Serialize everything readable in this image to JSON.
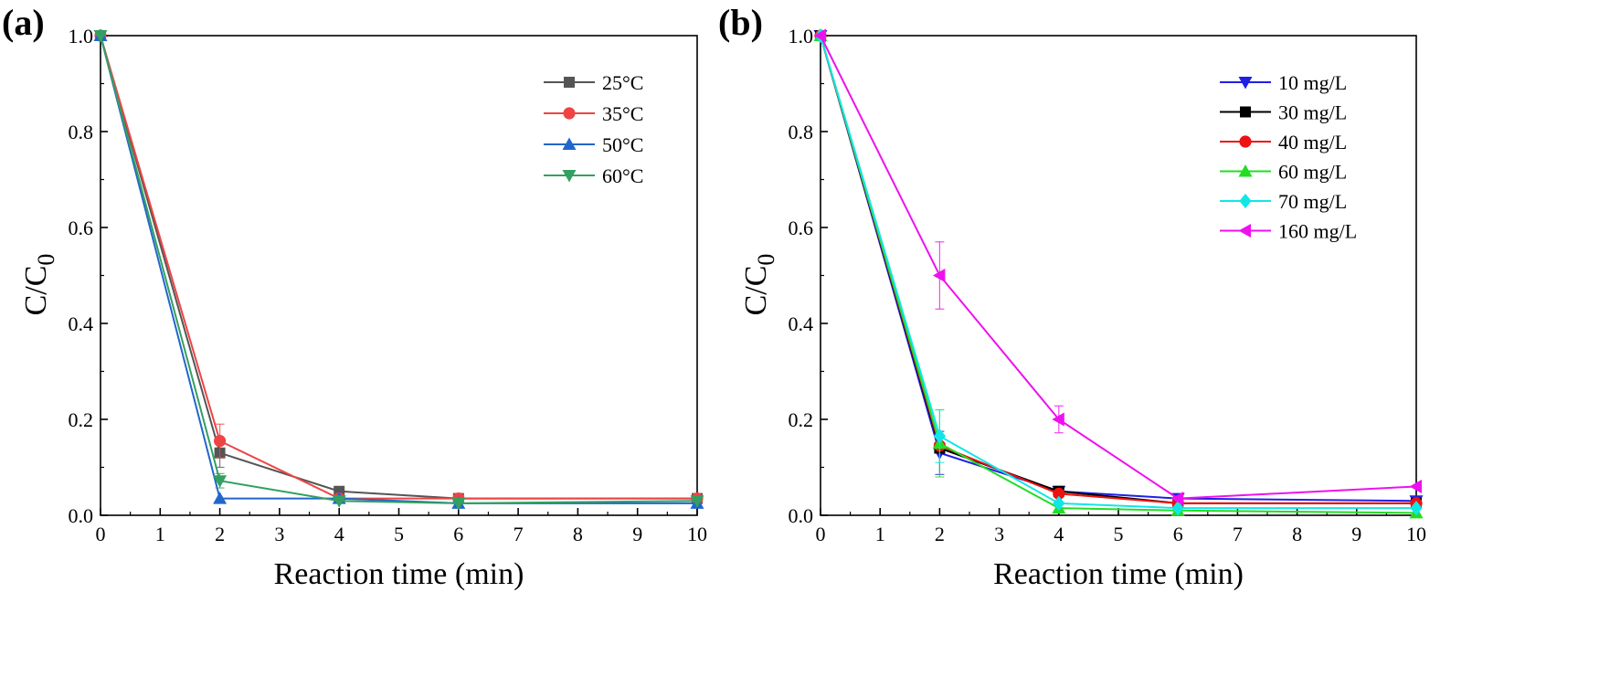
{
  "chart_data": [
    {
      "type": "line",
      "panel_label": "(a)",
      "xlabel": "Reaction time (min)",
      "ylabel_main": "C/C",
      "ylabel_sub": "0",
      "xlim": [
        0,
        10
      ],
      "ylim": [
        0,
        1.0
      ],
      "x_ticks": [
        0,
        1,
        2,
        3,
        4,
        5,
        6,
        7,
        8,
        9,
        10
      ],
      "x_tick_labels": [
        "0",
        "1",
        "2",
        "3",
        "4",
        "5",
        "6",
        "7",
        "8",
        "9",
        "10"
      ],
      "y_ticks": [
        0,
        0.2,
        0.4,
        0.6,
        0.8,
        1.0
      ],
      "y_tick_labels": [
        "0.0",
        "0.2",
        "0.4",
        "0.6",
        "0.8",
        "1.0"
      ],
      "legend_position": "top-right",
      "x": [
        0,
        2,
        4,
        6,
        10
      ],
      "series": [
        {
          "name": "25°C",
          "color": "#555555",
          "marker": "square",
          "values": [
            1.0,
            0.13,
            0.05,
            0.035,
            0.035
          ],
          "errors": [
            0,
            0.03,
            0,
            0,
            0
          ]
        },
        {
          "name": "35°C",
          "color": "#ee4444",
          "marker": "circle",
          "values": [
            1.0,
            0.155,
            0.035,
            0.035,
            0.035
          ],
          "errors": [
            0,
            0.035,
            0,
            0,
            0
          ]
        },
        {
          "name": "50°C",
          "color": "#2266cc",
          "marker": "triangle-up",
          "values": [
            1.0,
            0.035,
            0.035,
            0.025,
            0.025
          ],
          "errors": [
            0,
            0,
            0,
            0,
            0
          ]
        },
        {
          "name": "60°C",
          "color": "#33a060",
          "marker": "triangle-down",
          "values": [
            1.0,
            0.072,
            0.03,
            0.025,
            0.03
          ],
          "errors": [
            0,
            0.015,
            0,
            0,
            0
          ]
        }
      ]
    },
    {
      "type": "line",
      "panel_label": "(b)",
      "xlabel": "Reaction time (min)",
      "ylabel_main": "C/C",
      "ylabel_sub": "0",
      "xlim": [
        0,
        10
      ],
      "ylim": [
        0,
        1.0
      ],
      "x_ticks": [
        0,
        1,
        2,
        3,
        4,
        5,
        6,
        7,
        8,
        9,
        10
      ],
      "x_tick_labels": [
        "0",
        "1",
        "2",
        "3",
        "4",
        "5",
        "6",
        "7",
        "8",
        "9",
        "10"
      ],
      "y_ticks": [
        0,
        0.2,
        0.4,
        0.6,
        0.8,
        1.0
      ],
      "y_tick_labels": [
        "0.0",
        "0.2",
        "0.4",
        "0.6",
        "0.8",
        "1.0"
      ],
      "legend_position": "top-right",
      "x": [
        0,
        2,
        4,
        6,
        10
      ],
      "series": [
        {
          "name": "10 mg/L",
          "color": "#1f1fe6",
          "marker": "triangle-down",
          "values": [
            1.0,
            0.13,
            0.05,
            0.035,
            0.03
          ],
          "errors": [
            0,
            0.045,
            0,
            0,
            0
          ]
        },
        {
          "name": "30 mg/L",
          "color": "#000000",
          "marker": "square",
          "values": [
            1.0,
            0.14,
            0.05,
            0.025,
            0.025
          ],
          "errors": [
            0,
            0,
            0,
            0,
            0
          ]
        },
        {
          "name": "40 mg/L",
          "color": "#ee1111",
          "marker": "circle",
          "values": [
            1.0,
            0.145,
            0.045,
            0.025,
            0.025
          ],
          "errors": [
            0,
            0,
            0,
            0,
            0
          ]
        },
        {
          "name": "60 mg/L",
          "color": "#22dd22",
          "marker": "triangle-up",
          "values": [
            1.0,
            0.15,
            0.015,
            0.01,
            0.005
          ],
          "errors": [
            0,
            0.07,
            0,
            0,
            0
          ]
        },
        {
          "name": "70 mg/L",
          "color": "#11e6e6",
          "marker": "diamond",
          "values": [
            1.0,
            0.165,
            0.025,
            0.015,
            0.015
          ],
          "errors": [
            0,
            0.055,
            0,
            0,
            0
          ]
        },
        {
          "name": "160 mg/L",
          "color": "#ee11ee",
          "marker": "triangle-left",
          "values": [
            1.0,
            0.5,
            0.2,
            0.035,
            0.06
          ],
          "errors": [
            0,
            0.07,
            0.028,
            0,
            0
          ]
        }
      ]
    }
  ]
}
